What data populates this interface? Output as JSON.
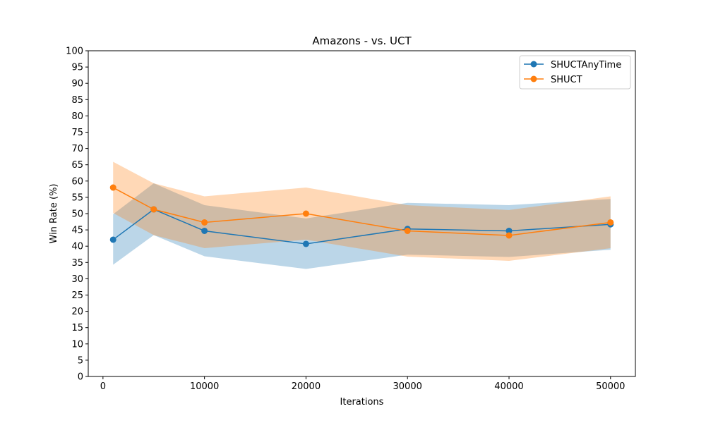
{
  "chart_data": {
    "type": "line",
    "title": "Amazons - vs. UCT",
    "xlabel": "Iterations",
    "ylabel": "Win Rate (%)",
    "x": [
      1000,
      5000,
      10000,
      20000,
      30000,
      40000,
      50000
    ],
    "xlim": [
      -1450,
      52450
    ],
    "ylim": [
      0,
      100
    ],
    "xticks": [
      0,
      10000,
      20000,
      30000,
      40000,
      50000
    ],
    "yticks": [
      0,
      5,
      10,
      15,
      20,
      25,
      30,
      35,
      40,
      45,
      50,
      55,
      60,
      65,
      70,
      75,
      80,
      85,
      90,
      95,
      100
    ],
    "grid": false,
    "legend_position": "top-right",
    "series": [
      {
        "name": "SHUCTAnyTime",
        "color": "#1f77b4",
        "band_color": "#1f77b4",
        "values": [
          42,
          51.3,
          44.7,
          40.7,
          45.3,
          44.7,
          46.7
        ],
        "lower": [
          34.3,
          43.4,
          36.9,
          33.0,
          37.4,
          36.7,
          38.9
        ],
        "upper": [
          49.8,
          59.3,
          52.6,
          48.5,
          53.3,
          52.6,
          54.5
        ]
      },
      {
        "name": "SHUCT",
        "color": "#ff7f0e",
        "band_color": "#ff7f0e",
        "values": [
          58,
          51.3,
          47.3,
          50.0,
          44.7,
          43.3,
          47.3
        ],
        "lower": [
          50.2,
          43.4,
          39.4,
          42.0,
          36.8,
          35.5,
          39.4
        ],
        "upper": [
          65.9,
          59.3,
          55.3,
          58.0,
          52.6,
          51.1,
          55.3
        ]
      }
    ]
  }
}
